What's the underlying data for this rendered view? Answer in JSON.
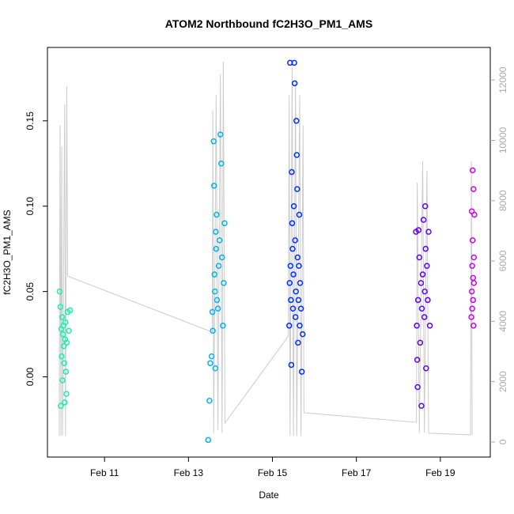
{
  "chart_data": {
    "type": "scatter",
    "title": "ATOM2 Northbound fC2H3O_PM1_AMS",
    "xlabel": "Date",
    "ylabel": "fC2H3O_PM1_AMS",
    "xlim": [
      9.64,
      20.19
    ],
    "ylim": [
      -0.047,
      0.193
    ],
    "y2lim": [
      -500,
      13080
    ],
    "xticks": [
      {
        "value": 11,
        "label": "Feb 11"
      },
      {
        "value": 13,
        "label": "Feb 13"
      },
      {
        "value": 15,
        "label": "Feb 15"
      },
      {
        "value": 17,
        "label": "Feb 17"
      },
      {
        "value": 19,
        "label": "Feb 19"
      }
    ],
    "yticks": [
      {
        "value": 0,
        "label": "0.00"
      },
      {
        "value": 0.05,
        "label": "0.05"
      },
      {
        "value": 0.1,
        "label": "0.10"
      },
      {
        "value": 0.15,
        "label": "0.15"
      }
    ],
    "y2ticks": [
      0,
      2000,
      4000,
      6000,
      8000,
      10000,
      12000
    ],
    "series": [
      {
        "type": "line",
        "axis": "y2",
        "color": "#cccccc",
        "x": [
          9.92,
          9.94,
          9.96,
          9.98,
          10.0,
          10.05,
          10.07,
          10.1,
          10.12,
          13.57,
          13.58,
          13.6,
          13.66,
          13.7,
          13.76,
          13.8,
          13.83,
          13.87,
          15.38,
          15.4,
          15.42,
          15.47,
          15.5,
          15.55,
          15.58,
          15.65,
          15.68,
          15.73,
          15.75,
          18.43,
          18.45,
          18.5,
          18.58,
          18.62,
          18.68,
          18.72,
          18.75,
          19.72,
          19.74,
          19.76
        ],
        "values": [
          200,
          10500,
          200,
          9800,
          200,
          11200,
          200,
          11800,
          5500,
          3640,
          11000,
          300,
          11500,
          400,
          12200,
          300,
          12600,
          630,
          3510,
          11500,
          200,
          12400,
          200,
          12000,
          200,
          11500,
          200,
          10500,
          970,
          650,
          8600,
          300,
          9300,
          300,
          9000,
          300,
          290,
          236,
          9300,
          236
        ]
      },
      {
        "color": "#19f0b0",
        "x": [
          9.93,
          9.95,
          9.96,
          9.97,
          9.98,
          9.99,
          10.0,
          10.01,
          10.02,
          10.03,
          10.04,
          10.05,
          10.06,
          10.07,
          10.08,
          10.09,
          10.1,
          10.12,
          10.15,
          10.18
        ],
        "values": [
          0.05,
          0.041,
          -0.017,
          0.028,
          0.012,
          0.035,
          -0.002,
          0.025,
          0.03,
          0.018,
          0.008,
          -0.015,
          0.022,
          0.032,
          0.003,
          -0.01,
          0.02,
          0.038,
          0.027,
          0.039
        ]
      },
      {
        "color": "#00b4f0",
        "x": [
          13.47,
          13.5,
          13.52,
          13.55,
          13.57,
          13.58,
          13.6,
          13.61,
          13.62,
          13.63,
          13.64,
          13.65,
          13.66,
          13.67,
          13.68,
          13.7,
          13.72,
          13.74,
          13.76,
          13.78,
          13.8,
          13.82,
          13.84,
          13.86
        ],
        "values": [
          -0.037,
          -0.014,
          0.008,
          0.012,
          0.038,
          0.027,
          0.138,
          0.112,
          0.06,
          0.05,
          0.005,
          0.085,
          0.075,
          0.095,
          0.045,
          0.04,
          0.065,
          0.08,
          0.142,
          0.125,
          0.07,
          0.03,
          0.055,
          0.09
        ]
      },
      {
        "color": "#0030ff",
        "x": [
          15.4,
          15.41,
          15.42,
          15.43,
          15.44,
          15.45,
          15.46,
          15.47,
          15.48,
          15.49,
          15.5,
          15.51,
          15.52,
          15.53,
          15.54,
          15.55,
          15.56,
          15.57,
          15.58,
          15.59,
          15.6,
          15.61,
          15.62,
          15.63,
          15.64,
          15.65,
          15.66,
          15.68,
          15.7,
          15.72
        ],
        "values": [
          0.03,
          0.055,
          0.184,
          0.065,
          0.045,
          0.007,
          0.12,
          0.09,
          0.075,
          0.04,
          0.06,
          0.1,
          0.184,
          0.172,
          0.08,
          0.035,
          0.05,
          0.15,
          0.13,
          0.11,
          0.07,
          0.02,
          0.045,
          0.065,
          0.095,
          0.03,
          0.055,
          0.04,
          0.003,
          0.025
        ]
      },
      {
        "color": "#6000ff",
        "x": [
          18.42,
          18.44,
          18.45,
          18.46,
          18.47,
          18.48,
          18.5,
          18.52,
          18.54,
          18.55,
          18.56,
          18.58,
          18.6,
          18.62,
          18.63,
          18.64,
          18.65,
          18.66,
          18.68,
          18.7,
          18.72,
          18.75
        ],
        "values": [
          0.085,
          0.03,
          0.01,
          -0.006,
          0.045,
          0.086,
          0.07,
          0.02,
          0.055,
          -0.017,
          0.04,
          0.06,
          0.092,
          0.035,
          0.05,
          0.1,
          0.075,
          0.005,
          0.065,
          0.045,
          0.085,
          0.03
        ]
      },
      {
        "color": "#d000e8",
        "x": [
          19.74,
          19.75,
          19.75,
          19.76,
          19.76,
          19.77,
          19.77,
          19.78,
          19.78,
          19.79,
          19.79,
          19.8,
          19.8,
          19.81
        ],
        "values": [
          0.035,
          0.05,
          0.097,
          0.065,
          0.04,
          0.121,
          0.08,
          0.058,
          0.045,
          0.11,
          0.03,
          0.07,
          0.055,
          0.095
        ]
      }
    ]
  }
}
